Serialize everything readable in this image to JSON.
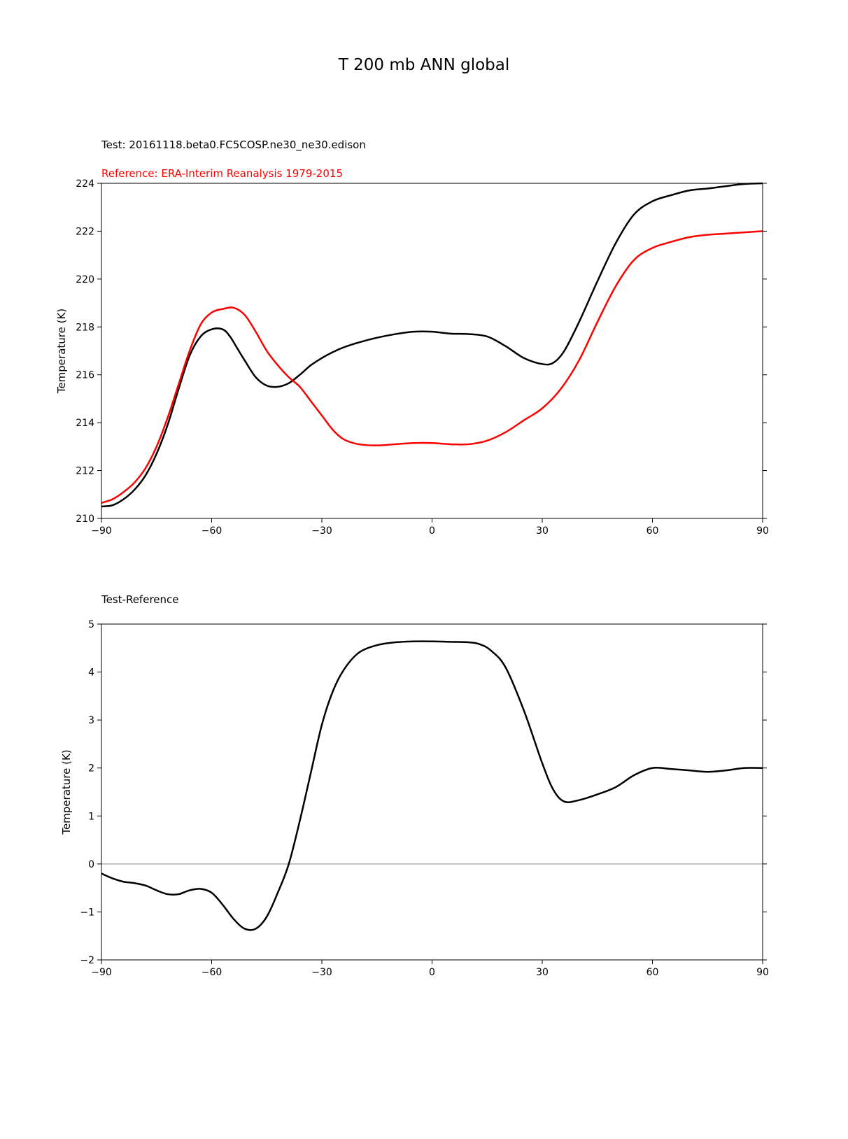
{
  "figure": {
    "title": "T 200 mb ANN global"
  },
  "chart_data": [
    {
      "type": "line",
      "test_label": "Test: 20161118.beta0.FC5COSP.ne30_ne30.edison",
      "reference_label": "Reference: ERA-Interim Reanalysis 1979-2015",
      "xlabel": "",
      "ylabel": "Temperature (K)",
      "xlim": [
        -90,
        90
      ],
      "ylim": [
        210,
        224
      ],
      "xticks": [
        -90,
        -60,
        -30,
        0,
        30,
        60,
        90
      ],
      "yticks": [
        210,
        212,
        214,
        216,
        218,
        220,
        222,
        224
      ],
      "grid": false,
      "series": [
        {
          "color": "#000000",
          "x": [
            -90,
            -87,
            -84,
            -81,
            -78,
            -75,
            -72,
            -69,
            -66,
            -63,
            -60,
            -57,
            -55,
            -53,
            -51,
            -48,
            -45,
            -42,
            -39,
            -36,
            -33,
            -30,
            -27,
            -24,
            -20,
            -15,
            -10,
            -5,
            0,
            5,
            10,
            15,
            20,
            25,
            30,
            33,
            36,
            40,
            45,
            50,
            55,
            60,
            65,
            70,
            75,
            80,
            85,
            90
          ],
          "y": [
            210.5,
            210.55,
            210.8,
            211.2,
            211.8,
            212.7,
            213.9,
            215.4,
            216.8,
            217.6,
            217.9,
            217.9,
            217.6,
            217.1,
            216.6,
            215.9,
            215.55,
            215.5,
            215.65,
            216.0,
            216.4,
            216.7,
            216.95,
            217.15,
            217.35,
            217.55,
            217.7,
            217.8,
            217.8,
            217.72,
            217.7,
            217.6,
            217.2,
            216.7,
            216.45,
            216.5,
            217.0,
            218.2,
            219.9,
            221.5,
            222.7,
            223.25,
            223.5,
            223.7,
            223.78,
            223.88,
            223.97,
            224.0
          ]
        },
        {
          "color": "#ff0000",
          "x": [
            -90,
            -87,
            -84,
            -81,
            -78,
            -75,
            -72,
            -69,
            -66,
            -63,
            -60,
            -57,
            -54,
            -51,
            -48,
            -45,
            -42,
            -39,
            -36,
            -33,
            -30,
            -27,
            -24,
            -20,
            -15,
            -10,
            -5,
            0,
            5,
            10,
            15,
            20,
            25,
            30,
            35,
            40,
            45,
            50,
            55,
            60,
            65,
            70,
            75,
            80,
            85,
            90
          ],
          "y": [
            210.65,
            210.8,
            211.1,
            211.5,
            212.1,
            213.0,
            214.2,
            215.6,
            217.0,
            218.1,
            218.6,
            218.75,
            218.8,
            218.5,
            217.8,
            217.0,
            216.4,
            215.9,
            215.5,
            214.9,
            214.3,
            213.7,
            213.3,
            213.1,
            213.05,
            213.1,
            213.15,
            213.15,
            213.1,
            213.1,
            213.25,
            213.6,
            214.1,
            214.6,
            215.4,
            216.6,
            218.2,
            219.7,
            220.8,
            221.3,
            221.55,
            221.75,
            221.85,
            221.9,
            221.95,
            222.0
          ]
        }
      ]
    },
    {
      "type": "line",
      "title": "Test-Reference",
      "xlabel": "",
      "ylabel": "Temperature (K)",
      "xlim": [
        -90,
        90
      ],
      "ylim": [
        -2,
        5
      ],
      "xticks": [
        -90,
        -60,
        -30,
        0,
        30,
        60,
        90
      ],
      "yticks": [
        -2,
        -1,
        0,
        1,
        2,
        3,
        4,
        5
      ],
      "zero_line": true,
      "grid": false,
      "series": [
        {
          "color": "#000000",
          "x": [
            -90,
            -87,
            -84,
            -81,
            -78,
            -75,
            -72,
            -69,
            -66,
            -63,
            -60,
            -57,
            -54,
            -51,
            -48,
            -45,
            -42,
            -39,
            -36,
            -33,
            -30,
            -27,
            -24,
            -20,
            -15,
            -10,
            -5,
            0,
            5,
            10,
            13,
            16,
            20,
            25,
            30,
            33,
            36,
            40,
            45,
            50,
            55,
            60,
            65,
            70,
            75,
            80,
            85,
            90
          ],
          "y": [
            -0.2,
            -0.3,
            -0.37,
            -0.4,
            -0.45,
            -0.55,
            -0.63,
            -0.63,
            -0.55,
            -0.52,
            -0.6,
            -0.85,
            -1.15,
            -1.35,
            -1.35,
            -1.1,
            -0.6,
            0.0,
            0.9,
            1.9,
            2.9,
            3.6,
            4.05,
            4.4,
            4.56,
            4.62,
            4.64,
            4.64,
            4.63,
            4.62,
            4.58,
            4.45,
            4.1,
            3.2,
            2.1,
            1.55,
            1.3,
            1.33,
            1.45,
            1.6,
            1.85,
            2.0,
            1.98,
            1.95,
            1.92,
            1.95,
            2.0,
            2.0
          ]
        }
      ]
    }
  ]
}
